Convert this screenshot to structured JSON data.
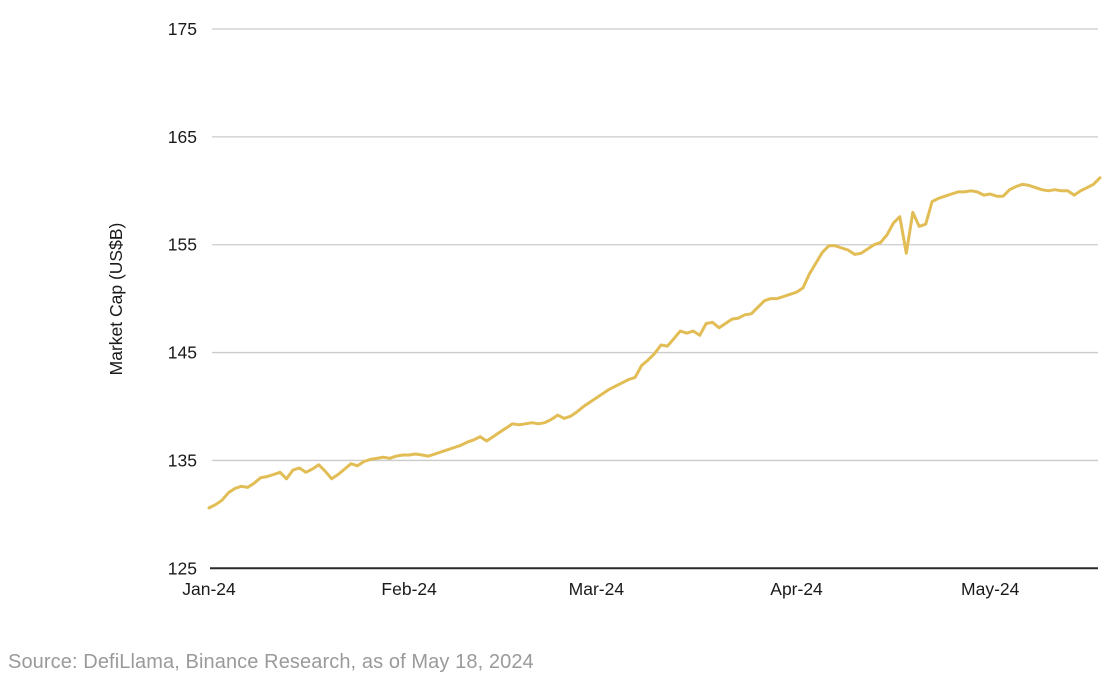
{
  "chart_data": {
    "type": "line",
    "title": "",
    "xlabel": "",
    "ylabel": "Market Cap (US$B)",
    "ylim": [
      125,
      175
    ],
    "yticks": [
      125,
      135,
      145,
      155,
      165,
      175
    ],
    "x_tick_labels": [
      "Jan-24",
      "Feb-24",
      "Mar-24",
      "Apr-24",
      "May-24"
    ],
    "x_tick_day_index": [
      0,
      31,
      60,
      91,
      121
    ],
    "x_total_days": 138,
    "grid": "horizontal-only",
    "legend_position": "none",
    "series": [
      {
        "name": "Market Cap (US$B)",
        "start_date": "2024-01-01",
        "end_date": "2024-05-18",
        "frequency": "daily",
        "values": [
          130.6,
          130.9,
          131.3,
          132.0,
          132.4,
          132.6,
          132.5,
          132.9,
          133.4,
          133.5,
          133.7,
          133.9,
          133.3,
          134.1,
          134.3,
          133.9,
          134.2,
          134.6,
          134.0,
          133.3,
          133.7,
          134.2,
          134.7,
          134.5,
          134.9,
          135.1,
          135.2,
          135.3,
          135.2,
          135.4,
          135.5,
          135.5,
          135.6,
          135.5,
          135.4,
          135.6,
          135.8,
          136.0,
          136.2,
          136.4,
          136.7,
          136.9,
          137.2,
          136.8,
          137.2,
          137.6,
          138.0,
          138.4,
          138.3,
          138.4,
          138.5,
          138.4,
          138.5,
          138.8,
          139.2,
          138.9,
          139.1,
          139.5,
          140.0,
          140.4,
          140.8,
          141.2,
          141.6,
          141.9,
          142.2,
          142.5,
          142.7,
          143.8,
          144.3,
          144.9,
          145.7,
          145.6,
          146.3,
          147.0,
          146.8,
          147.0,
          146.6,
          147.7,
          147.8,
          147.3,
          147.7,
          148.1,
          148.2,
          148.5,
          148.6,
          149.2,
          149.8,
          150.0,
          150.0,
          150.2,
          150.4,
          150.6,
          151.0,
          152.3,
          153.3,
          154.3,
          154.9,
          154.9,
          154.7,
          154.5,
          154.1,
          154.2,
          154.6,
          155.0,
          155.2,
          155.9,
          157.0,
          157.6,
          154.2,
          158.0,
          156.7,
          156.9,
          159.0,
          159.3,
          159.5,
          159.7,
          159.9,
          159.9,
          160.0,
          159.9,
          159.6,
          159.7,
          159.5,
          159.5,
          160.1,
          160.4,
          160.6,
          160.5,
          160.3,
          160.1,
          160.0,
          160.1,
          160.0,
          160.0,
          159.6,
          160.0,
          160.3,
          160.6,
          161.2
        ]
      }
    ]
  },
  "footer": {
    "source_text": "Source: DefiLlama, Binance Research, as of May 18, 2024"
  },
  "colors": {
    "line": "#E2BD55",
    "gridline": "#CBCBCB",
    "axis_line": "#2B2B2B",
    "tick_text": "#1A1A1A",
    "source_text": "#9A9A9A",
    "background": "#FFFFFF"
  }
}
